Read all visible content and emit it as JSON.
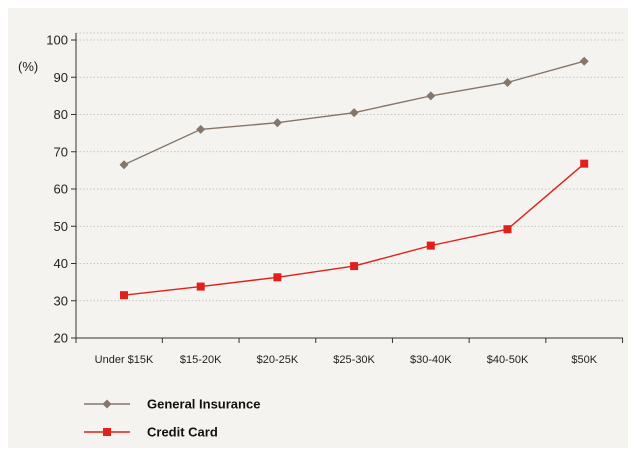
{
  "chart_data": {
    "type": "line",
    "title": "",
    "xlabel": "",
    "ylabel": "(%)",
    "ylim": [
      20,
      100
    ],
    "yticks": [
      20,
      30,
      40,
      50,
      60,
      70,
      80,
      90,
      100
    ],
    "grid": true,
    "legend_position": "bottom-left",
    "categories": [
      "Under $15K",
      "$15-20K",
      "$20-25K",
      "$25-30K",
      "$30-40K",
      "$40-50K",
      "$50K"
    ],
    "series": [
      {
        "name": "General Insurance",
        "values": [
          66.5,
          76,
          77.8,
          80.5,
          85,
          88.6,
          94.3
        ],
        "color": "#86766a",
        "marker": "diamond"
      },
      {
        "name": "Credit Card",
        "values": [
          31.5,
          33.8,
          36.3,
          39.3,
          44.8,
          49.2,
          66.8
        ],
        "color": "#e0201b",
        "marker": "square"
      }
    ]
  }
}
